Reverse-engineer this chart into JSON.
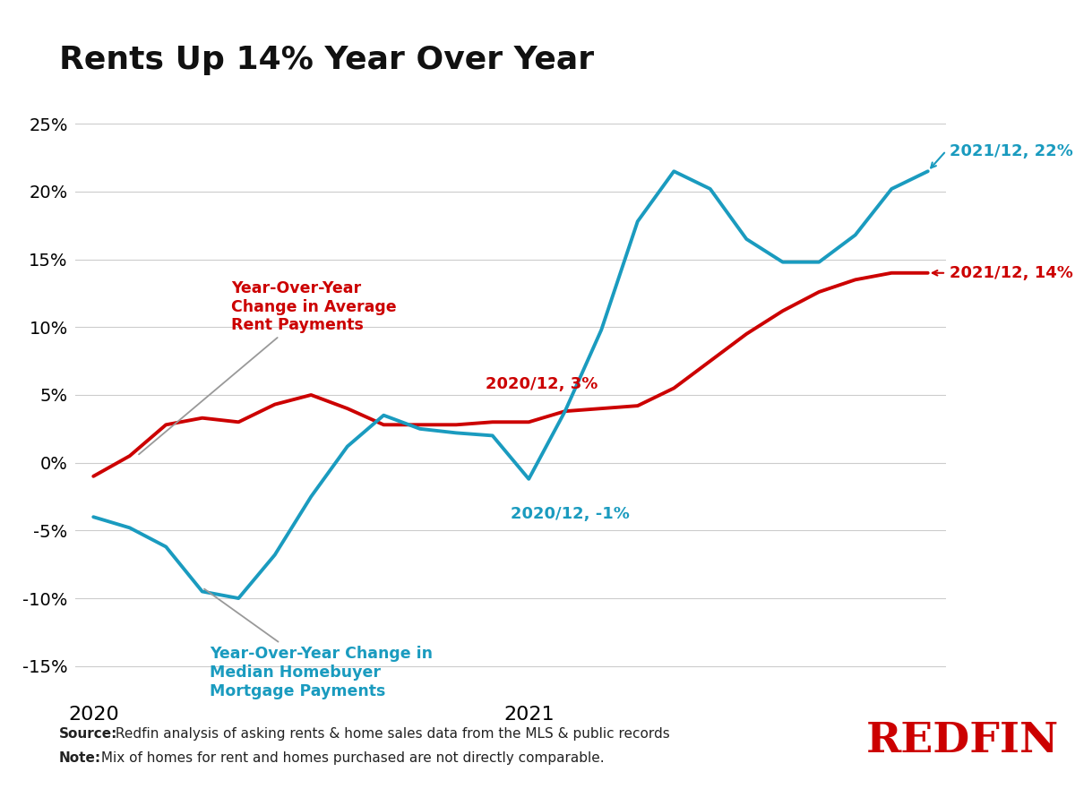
{
  "title": "Rents Up 14% Year Over Year",
  "title_fontsize": 26,
  "background_color": "#ffffff",
  "rent_color": "#cc0000",
  "mortgage_color": "#1a9bbf",
  "grid_color": "#cccccc",
  "source_bold": "Source:",
  "source_text": " Redfin analysis of asking rents & home sales data from the MLS & public records",
  "note_bold": "Note:",
  "note_text": " Mix of homes for rent and homes purchased are not directly comparable.",
  "rent_x": [
    0,
    1,
    2,
    3,
    4,
    5,
    6,
    7,
    8,
    9,
    10,
    11,
    12,
    13,
    14,
    15,
    16,
    17,
    18,
    19,
    20,
    21,
    22,
    23
  ],
  "rent_y": [
    -0.01,
    0.005,
    0.028,
    0.033,
    0.03,
    0.043,
    0.05,
    0.04,
    0.028,
    0.028,
    0.028,
    0.03,
    0.03,
    0.038,
    0.04,
    0.042,
    0.055,
    0.075,
    0.095,
    0.112,
    0.126,
    0.135,
    0.14,
    0.14
  ],
  "mortgage_x": [
    0,
    1,
    2,
    3,
    4,
    5,
    6,
    7,
    8,
    9,
    10,
    11,
    12,
    13,
    14,
    15,
    16,
    17,
    18,
    19,
    20,
    21,
    22,
    23
  ],
  "mortgage_y": [
    -0.04,
    -0.048,
    -0.062,
    -0.095,
    -0.1,
    -0.068,
    -0.025,
    0.012,
    0.035,
    0.025,
    0.022,
    0.02,
    -0.012,
    0.038,
    0.098,
    0.178,
    0.215,
    0.202,
    0.165,
    0.148,
    0.148,
    0.168,
    0.202,
    0.215
  ],
  "x_tick_positions": [
    0,
    12
  ],
  "x_tick_labels": [
    "2020",
    "2021"
  ],
  "ylim": [
    -0.17,
    0.27
  ],
  "yticks": [
    -0.15,
    -0.1,
    -0.05,
    0.0,
    0.05,
    0.1,
    0.15,
    0.2,
    0.25
  ],
  "line_width": 2.8
}
